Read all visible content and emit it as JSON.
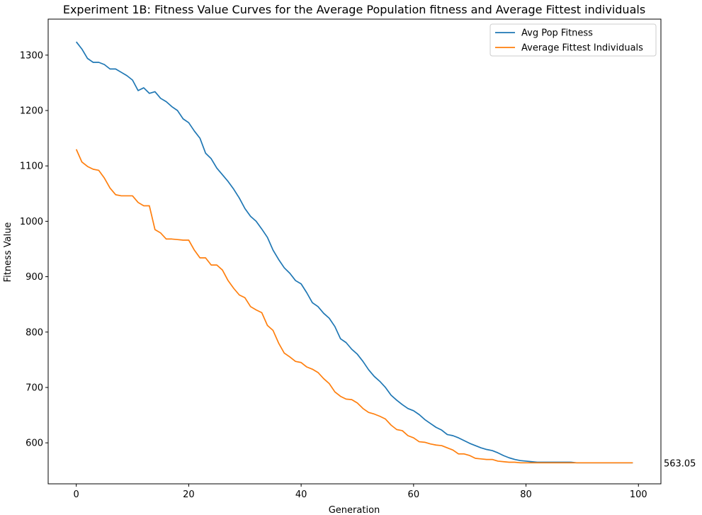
{
  "chart_data": {
    "type": "line",
    "title": "Experiment 1B: Fitness Value Curves for the Average Population fitness and Average Fittest individuals",
    "xlabel": "Generation",
    "ylabel": "Fitness Value",
    "xlim": [
      -5,
      104
    ],
    "ylim": [
      526,
      1365
    ],
    "xticks": [
      0,
      20,
      40,
      60,
      80,
      100
    ],
    "yticks": [
      600,
      700,
      800,
      900,
      1000,
      1100,
      1200,
      1300
    ],
    "grid": false,
    "legend_position": "top-right",
    "annotation": {
      "text": "563.05",
      "x": 104.5,
      "y": 563.05
    },
    "colors": {
      "Avg Pop Fitness": "#1f77b4",
      "Average Fittest Individuals": "#ff7f0e"
    },
    "series": [
      {
        "name": "Avg Pop Fitness",
        "values": [
          1324,
          1311,
          1294,
          1287,
          1287,
          1283,
          1275,
          1275,
          1269,
          1263,
          1255,
          1236,
          1241,
          1231,
          1234,
          1222,
          1216,
          1207,
          1200,
          1185,
          1178,
          1163,
          1150,
          1123,
          1113,
          1096,
          1084,
          1072,
          1058,
          1042,
          1023,
          1009,
          1000,
          986,
          971,
          948,
          931,
          916,
          906,
          893,
          887,
          871,
          853,
          846,
          834,
          825,
          810,
          788,
          781,
          769,
          760,
          747,
          732,
          720,
          711,
          700,
          686,
          677,
          669,
          662,
          658,
          651,
          642,
          635,
          628,
          623,
          615,
          613,
          609,
          604,
          599,
          595,
          591,
          588,
          586,
          582,
          577,
          573,
          570,
          568,
          567,
          566,
          565,
          565,
          565,
          565,
          565,
          565,
          565,
          564,
          564,
          564,
          564,
          564,
          564,
          564,
          564,
          564,
          564,
          564
        ]
      },
      {
        "name": "Average Fittest Individuals",
        "values": [
          1130,
          1107,
          1099,
          1094,
          1092,
          1078,
          1060,
          1048,
          1046,
          1046,
          1046,
          1034,
          1028,
          1028,
          985,
          979,
          968,
          968,
          967,
          966,
          966,
          948,
          934,
          934,
          921,
          921,
          912,
          893,
          879,
          867,
          862,
          846,
          840,
          835,
          812,
          803,
          780,
          762,
          755,
          747,
          745,
          737,
          733,
          727,
          716,
          707,
          692,
          684,
          679,
          678,
          672,
          662,
          655,
          652,
          648,
          643,
          632,
          624,
          622,
          613,
          609,
          602,
          601,
          598,
          596,
          595,
          591,
          587,
          580,
          580,
          577,
          572,
          571,
          570,
          570,
          567,
          566,
          565,
          565,
          564,
          564,
          564,
          564,
          564,
          564,
          564,
          564,
          564,
          564,
          564,
          564,
          564,
          564,
          564,
          564,
          564,
          564,
          564,
          564,
          564
        ]
      }
    ]
  }
}
